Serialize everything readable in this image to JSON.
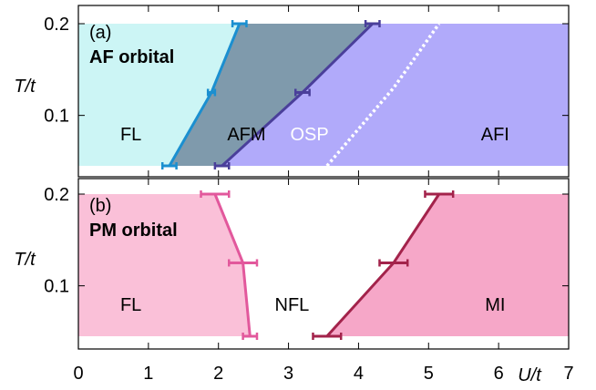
{
  "chart_data": [
    {
      "type": "area",
      "panel_label": "(a)",
      "title": "AF orbital",
      "ylabel": "T/t",
      "xlim": [
        0,
        7
      ],
      "ylim": [
        0.045,
        0.2
      ],
      "yticks": [
        0.1,
        0.2
      ],
      "xticks": [
        0,
        1,
        2,
        3,
        4,
        5,
        6,
        7
      ],
      "series": [
        {
          "name": "FL–AFM boundary",
          "color": "#1b8fd0",
          "points": [
            {
              "x": 1.3,
              "y": 0.045,
              "xerr": 0.1
            },
            {
              "x": 1.9,
              "y": 0.125,
              "xerr": 0.05
            },
            {
              "x": 2.3,
              "y": 0.2,
              "xerr": 0.1
            }
          ]
        },
        {
          "name": "AFM–OSP boundary",
          "color": "#4a3f9a",
          "points": [
            {
              "x": 2.05,
              "y": 0.045,
              "xerr": 0.1
            },
            {
              "x": 3.2,
              "y": 0.125,
              "xerr": 0.1
            },
            {
              "x": 4.2,
              "y": 0.2,
              "xerr": 0.1
            }
          ]
        },
        {
          "name": "OSP–AFI crossover",
          "color": "#ffffff",
          "style": "dotted",
          "points": [
            {
              "x": 3.55,
              "y": 0.045
            },
            {
              "x": 4.5,
              "y": 0.13
            },
            {
              "x": 5.15,
              "y": 0.2
            }
          ]
        }
      ],
      "regions": [
        {
          "label": "FL",
          "color": "#ccf5f5",
          "label_x": 0.75,
          "label_y": 0.08,
          "text_color": "#000000"
        },
        {
          "label": "AFM",
          "color": "#7f9aac",
          "label_x": 2.4,
          "label_y": 0.08,
          "text_color": "#000000"
        },
        {
          "label": "OSP",
          "color": "#b1aafa",
          "label_x": 3.3,
          "label_y": 0.08,
          "text_color": "#ffffff"
        },
        {
          "label": "AFI",
          "color": "#b1aafa",
          "label_x": 5.95,
          "label_y": 0.08,
          "text_color": "#000000"
        }
      ]
    },
    {
      "type": "area",
      "panel_label": "(b)",
      "title": "PM orbital",
      "xlabel": "U/t",
      "ylabel": "T/t",
      "xlim": [
        0,
        7
      ],
      "ylim": [
        0.045,
        0.2
      ],
      "yticks": [
        0.1,
        0.2
      ],
      "xticks": [
        0,
        1,
        2,
        3,
        4,
        5,
        6,
        7
      ],
      "series": [
        {
          "name": "FL–NFL boundary",
          "color": "#e2589c",
          "points": [
            {
              "x": 2.45,
              "y": 0.045,
              "xerr": 0.1
            },
            {
              "x": 2.35,
              "y": 0.125,
              "xerr": 0.2
            },
            {
              "x": 1.95,
              "y": 0.2,
              "xerr": 0.2
            }
          ]
        },
        {
          "name": "NFL–MI boundary",
          "color": "#a3234b",
          "points": [
            {
              "x": 3.55,
              "y": 0.045,
              "xerr": 0.2
            },
            {
              "x": 4.5,
              "y": 0.125,
              "xerr": 0.2
            },
            {
              "x": 5.15,
              "y": 0.2,
              "xerr": 0.2
            }
          ]
        }
      ],
      "regions": [
        {
          "label": "FL",
          "color": "#fac0d8",
          "label_x": 0.75,
          "label_y": 0.08,
          "text_color": "#000000"
        },
        {
          "label": "NFL",
          "color": "#ffffff",
          "label_x": 3.05,
          "label_y": 0.08,
          "text_color": "#000000"
        },
        {
          "label": "MI",
          "color": "#f6a7c8",
          "label_x": 5.95,
          "label_y": 0.08,
          "text_color": "#000000"
        }
      ]
    }
  ]
}
